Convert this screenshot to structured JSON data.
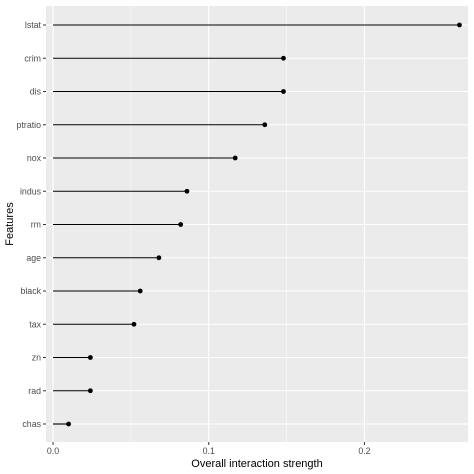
{
  "chart_data": {
    "type": "lollipop",
    "title": "",
    "xlabel": "Overall interaction strength",
    "ylabel": "Features",
    "xlim": [
      -0.0045,
      0.2665
    ],
    "x_ticks": [
      0.0,
      0.1,
      0.2
    ],
    "x_tick_labels": [
      "0.0",
      "0.1",
      "0.2"
    ],
    "grid": true,
    "legend": "none",
    "categories": [
      "lstat",
      "crim",
      "dis",
      "ptratio",
      "nox",
      "indus",
      "rm",
      "age",
      "black",
      "tax",
      "zn",
      "rad",
      "chas"
    ],
    "values": [
      0.261,
      0.148,
      0.148,
      0.136,
      0.117,
      0.086,
      0.082,
      0.068,
      0.056,
      0.052,
      0.024,
      0.024,
      0.01
    ]
  }
}
